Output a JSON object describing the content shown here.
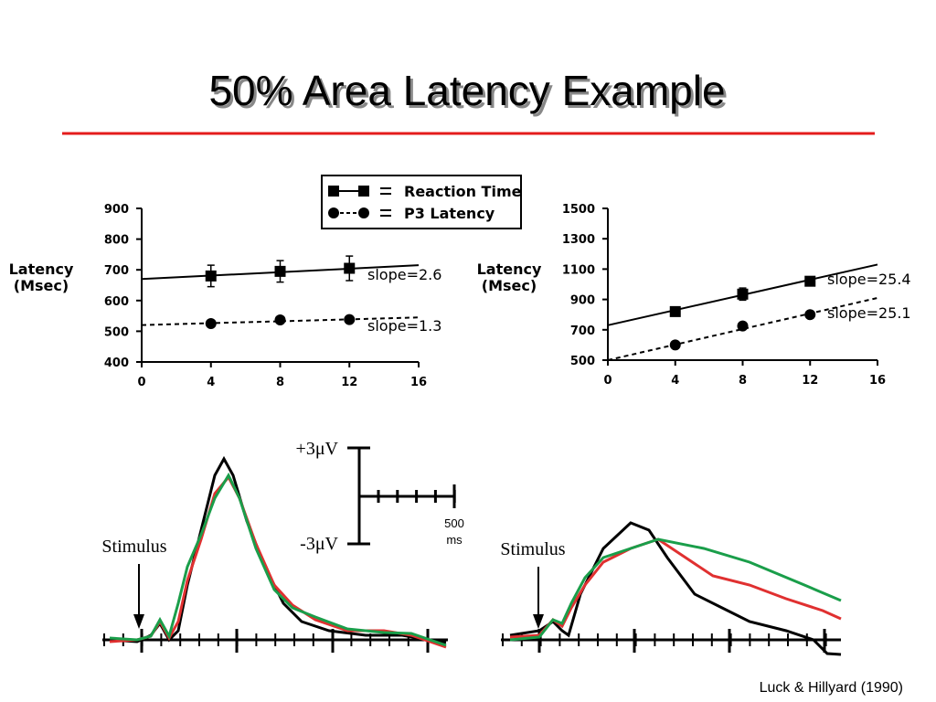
{
  "slide": {
    "title": "50% Area Latency Example",
    "stimulus_left": "Stimulus",
    "stimulus_right": "Stimulus",
    "scale_top": "+3μV",
    "scale_bottom": "-3μV",
    "scale_time": [
      "500",
      "ms"
    ],
    "citation": "Luck & Hillyard (1990)"
  },
  "chart_data": [
    {
      "type": "line",
      "y_label": [
        "Latency",
        "(Msec)"
      ],
      "x": [
        4,
        8,
        12
      ],
      "xlim": [
        0,
        16
      ],
      "xticks": [
        0,
        4,
        8,
        12,
        16
      ],
      "ylim": [
        400,
        900
      ],
      "yticks": [
        400,
        500,
        600,
        700,
        800,
        900
      ],
      "legend": "top",
      "annotations": [
        "slope=2.6",
        "slope=1.3"
      ],
      "series": [
        {
          "name": "Reaction Time",
          "color": "#000000",
          "marker": "square",
          "dash": false,
          "values": [
            680,
            695,
            705
          ],
          "errors": [
            35,
            35,
            40
          ],
          "fit": {
            "x": [
              0,
              16
            ],
            "values": [
              670,
              715
            ]
          }
        },
        {
          "name": "P3 Latency",
          "color": "#000000",
          "marker": "circle",
          "dash": true,
          "values": [
            525,
            537,
            538
          ],
          "errors": [
            8,
            8,
            8
          ],
          "fit": {
            "x": [
              0,
              16
            ],
            "values": [
              520,
              545
            ]
          }
        }
      ]
    },
    {
      "type": "line",
      "y_label": [
        "Latency",
        "(Msec)"
      ],
      "x": [
        4,
        8,
        12
      ],
      "xlim": [
        0,
        16
      ],
      "xticks": [
        0,
        4,
        8,
        12,
        16
      ],
      "ylim": [
        500,
        1500
      ],
      "yticks": [
        500,
        700,
        900,
        1100,
        1300,
        1500
      ],
      "annotations": [
        "slope=25.4",
        "slope=25.1"
      ],
      "series": [
        {
          "name": "Reaction Time",
          "color": "#000000",
          "marker": "square",
          "dash": false,
          "values": [
            820,
            935,
            1020
          ],
          "errors": [
            25,
            40,
            30
          ],
          "fit": {
            "x": [
              0,
              16
            ],
            "values": [
              730,
              1130
            ]
          }
        },
        {
          "name": "P3 Latency",
          "color": "#000000",
          "marker": "circle",
          "dash": true,
          "values": [
            600,
            725,
            800
          ],
          "errors": [
            15,
            20,
            20
          ],
          "fit": {
            "x": [
              0,
              16
            ],
            "values": [
              500,
              910
            ]
          }
        }
      ]
    }
  ]
}
